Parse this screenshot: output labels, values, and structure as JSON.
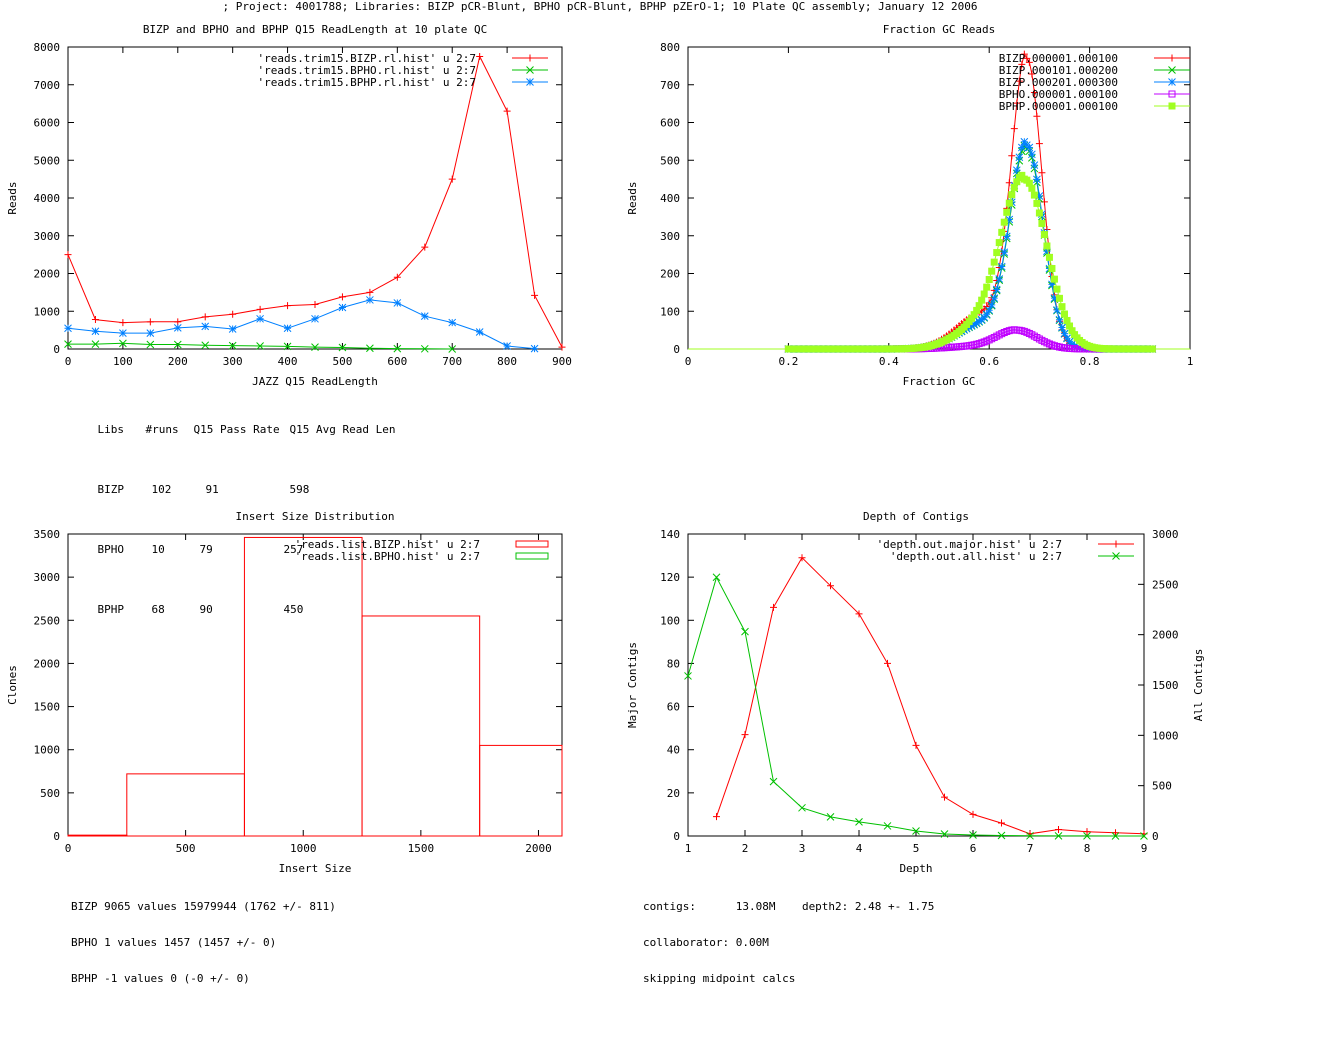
{
  "page": {
    "title": "; Project: 4001788; Libraries: BIZP pCR-Blunt, BPHO pCR-Blunt, BPHP pZErO-1; 10 Plate QC assembly; January 12 2006"
  },
  "colors": {
    "red": "#ff0000",
    "green": "#00c000",
    "blue": "#0080ff",
    "magenta": "#c000ff",
    "lime": "#a0ff20"
  },
  "chart_data": [
    {
      "type": "line",
      "title": "BIZP and BPHO and BPHP Q15 ReadLength at 10 plate QC",
      "xlabel": "JAZZ Q15 ReadLength",
      "ylabel": "Reads",
      "xlim": [
        0,
        900
      ],
      "ylim": [
        0,
        8000
      ],
      "xticks": [
        "0",
        "100",
        "200",
        "300",
        "400",
        "500",
        "600",
        "700",
        "800",
        "900"
      ],
      "yticks": [
        "0",
        "1000",
        "2000",
        "3000",
        "4000",
        "5000",
        "6000",
        "7000",
        "8000"
      ],
      "legend_position": "top-right",
      "series": [
        {
          "name": "'reads.trim15.BIZP.rl.hist' u 2:7",
          "color": "#ff0000",
          "marker": "plus",
          "x": [
            0,
            50,
            100,
            150,
            200,
            250,
            300,
            350,
            400,
            450,
            500,
            550,
            600,
            650,
            700,
            750,
            800,
            850,
            900
          ],
          "y": [
            2500,
            780,
            700,
            720,
            720,
            850,
            920,
            1050,
            1150,
            1180,
            1380,
            1500,
            1900,
            2700,
            4500,
            7750,
            6300,
            1420,
            50
          ]
        },
        {
          "name": "'reads.trim15.BPHO.rl.hist' u 2:7",
          "color": "#00c000",
          "marker": "x",
          "x": [
            0,
            50,
            100,
            150,
            200,
            250,
            300,
            350,
            400,
            450,
            500,
            550,
            600,
            650,
            700
          ],
          "y": [
            130,
            130,
            150,
            120,
            120,
            100,
            90,
            80,
            70,
            50,
            40,
            20,
            10,
            5,
            0
          ]
        },
        {
          "name": "'reads.trim15.BPHP.rl.hist' u 2:7",
          "color": "#0080ff",
          "marker": "star",
          "x": [
            0,
            50,
            100,
            150,
            200,
            250,
            300,
            350,
            400,
            450,
            500,
            550,
            600,
            650,
            700,
            750,
            800,
            850
          ],
          "y": [
            550,
            470,
            420,
            420,
            560,
            600,
            530,
            800,
            550,
            800,
            1100,
            1300,
            1220,
            870,
            700,
            450,
            80,
            10
          ]
        }
      ],
      "stats_table": {
        "header": [
          "Libs",
          "#runs",
          "Q15 Pass Rate",
          "Q15 Avg Read Len"
        ],
        "rows": [
          [
            "BIZP",
            "102",
            "91",
            "598"
          ],
          [
            "BPHO",
            "10",
            "79",
            "257"
          ],
          [
            "BPHP",
            "68",
            "90",
            "450"
          ]
        ]
      }
    },
    {
      "type": "scatter",
      "title": "Fraction GC Reads",
      "xlabel": "Fraction GC",
      "ylabel": "Reads",
      "xlim": [
        0,
        1
      ],
      "ylim": [
        0,
        800
      ],
      "xticks": [
        "0",
        "0.2",
        "0.4",
        "0.6",
        "0.8",
        "1"
      ],
      "yticks": [
        "0",
        "100",
        "200",
        "300",
        "400",
        "500",
        "600",
        "700",
        "800"
      ],
      "legend_position": "top-right",
      "series": [
        {
          "name": "BIZP.000001.000100",
          "color": "#ff0000",
          "marker": "plus",
          "peak_x": 0.675,
          "peak_y": 770,
          "width": 0.03
        },
        {
          "name": "BIZP.000101.000200",
          "color": "#00c000",
          "marker": "x",
          "peak_x": 0.675,
          "peak_y": 530,
          "width": 0.033
        },
        {
          "name": "BIZP.000201.000300",
          "color": "#0080ff",
          "marker": "star",
          "peak_x": 0.675,
          "peak_y": 540,
          "width": 0.033
        },
        {
          "name": "BPHO.000001.000100",
          "color": "#c000ff",
          "marker": "square",
          "peak_x": 0.655,
          "peak_y": 50,
          "width": 0.04
        },
        {
          "name": "BPHP.000001.000100",
          "color": "#a0ff20",
          "marker": "filled-square",
          "peak_x": 0.67,
          "peak_y": 450,
          "width": 0.045
        }
      ]
    },
    {
      "type": "bar",
      "title": "Insert Size Distribution",
      "xlabel": "Insert Size",
      "ylabel": "Clones",
      "xlim": [
        0,
        2100
      ],
      "ylim": [
        0,
        3500
      ],
      "xticks": [
        "0",
        "500",
        "1000",
        "1500",
        "2000"
      ],
      "yticks": [
        "0",
        "500",
        "1000",
        "1500",
        "2000",
        "2500",
        "3000",
        "3500"
      ],
      "legend_position": "top-right",
      "series": [
        {
          "name": "'reads.list.BIZP.hist' u 2:7",
          "color": "#ff0000",
          "bins": [
            [
              0,
              250,
              10
            ],
            [
              250,
              750,
              720
            ],
            [
              750,
              1250,
              3460
            ],
            [
              1250,
              1750,
              2550
            ],
            [
              1750,
              2100,
              1050
            ]
          ]
        },
        {
          "name": "'reads.list.BPHO.hist' u 2:7",
          "color": "#00c000",
          "bins": []
        }
      ],
      "stats_lines": [
        "BIZP 9065 values 15979944 (1762 +/- 811)",
        "BPHO 1 values 1457 (1457 +/- 0)",
        "BPHP -1 values 0 (-0 +/- 0)"
      ]
    },
    {
      "type": "line",
      "title": "Depth of Contigs",
      "xlabel": "Depth",
      "ylabel": "Major Contigs",
      "y2label": "All Contigs",
      "xlim": [
        1,
        9
      ],
      "ylim": [
        0,
        140
      ],
      "y2lim": [
        0,
        3000
      ],
      "xticks": [
        "1",
        "2",
        "3",
        "4",
        "5",
        "6",
        "7",
        "8",
        "9"
      ],
      "yticks": [
        "0",
        "20",
        "40",
        "60",
        "80",
        "100",
        "120",
        "140"
      ],
      "y2ticks": [
        "0",
        "500",
        "1000",
        "1500",
        "2000",
        "2500",
        "3000"
      ],
      "legend_position": "top-right",
      "series": [
        {
          "name": "'depth.out.major.hist' u 2:7",
          "color": "#ff0000",
          "marker": "plus",
          "axis": "y",
          "x": [
            1.5,
            2,
            2.5,
            3,
            3.5,
            4,
            4.5,
            5,
            5.5,
            6,
            6.5,
            7,
            7.5,
            8,
            8.5,
            9
          ],
          "y": [
            9,
            47,
            106,
            129,
            116,
            103,
            80,
            42,
            18,
            10,
            6,
            1,
            3,
            2,
            1.5,
            1
          ]
        },
        {
          "name": "'depth.out.all.hist' u 2:7",
          "color": "#00c000",
          "marker": "x",
          "axis": "y2",
          "x": [
            1,
            1.5,
            2,
            2.5,
            3,
            3.5,
            4,
            4.5,
            5,
            5.5,
            6,
            6.5,
            7,
            7.5,
            8,
            8.5,
            9
          ],
          "y": [
            1590,
            2570,
            2030,
            540,
            280,
            190,
            140,
            100,
            50,
            20,
            10,
            5,
            2,
            1,
            1,
            0,
            0
          ]
        }
      ],
      "stats_lines": [
        "contigs:      13.08M    depth2: 2.48 +- 1.75",
        "collaborator: 0.00M",
        "skipping midpoint calcs"
      ]
    }
  ]
}
